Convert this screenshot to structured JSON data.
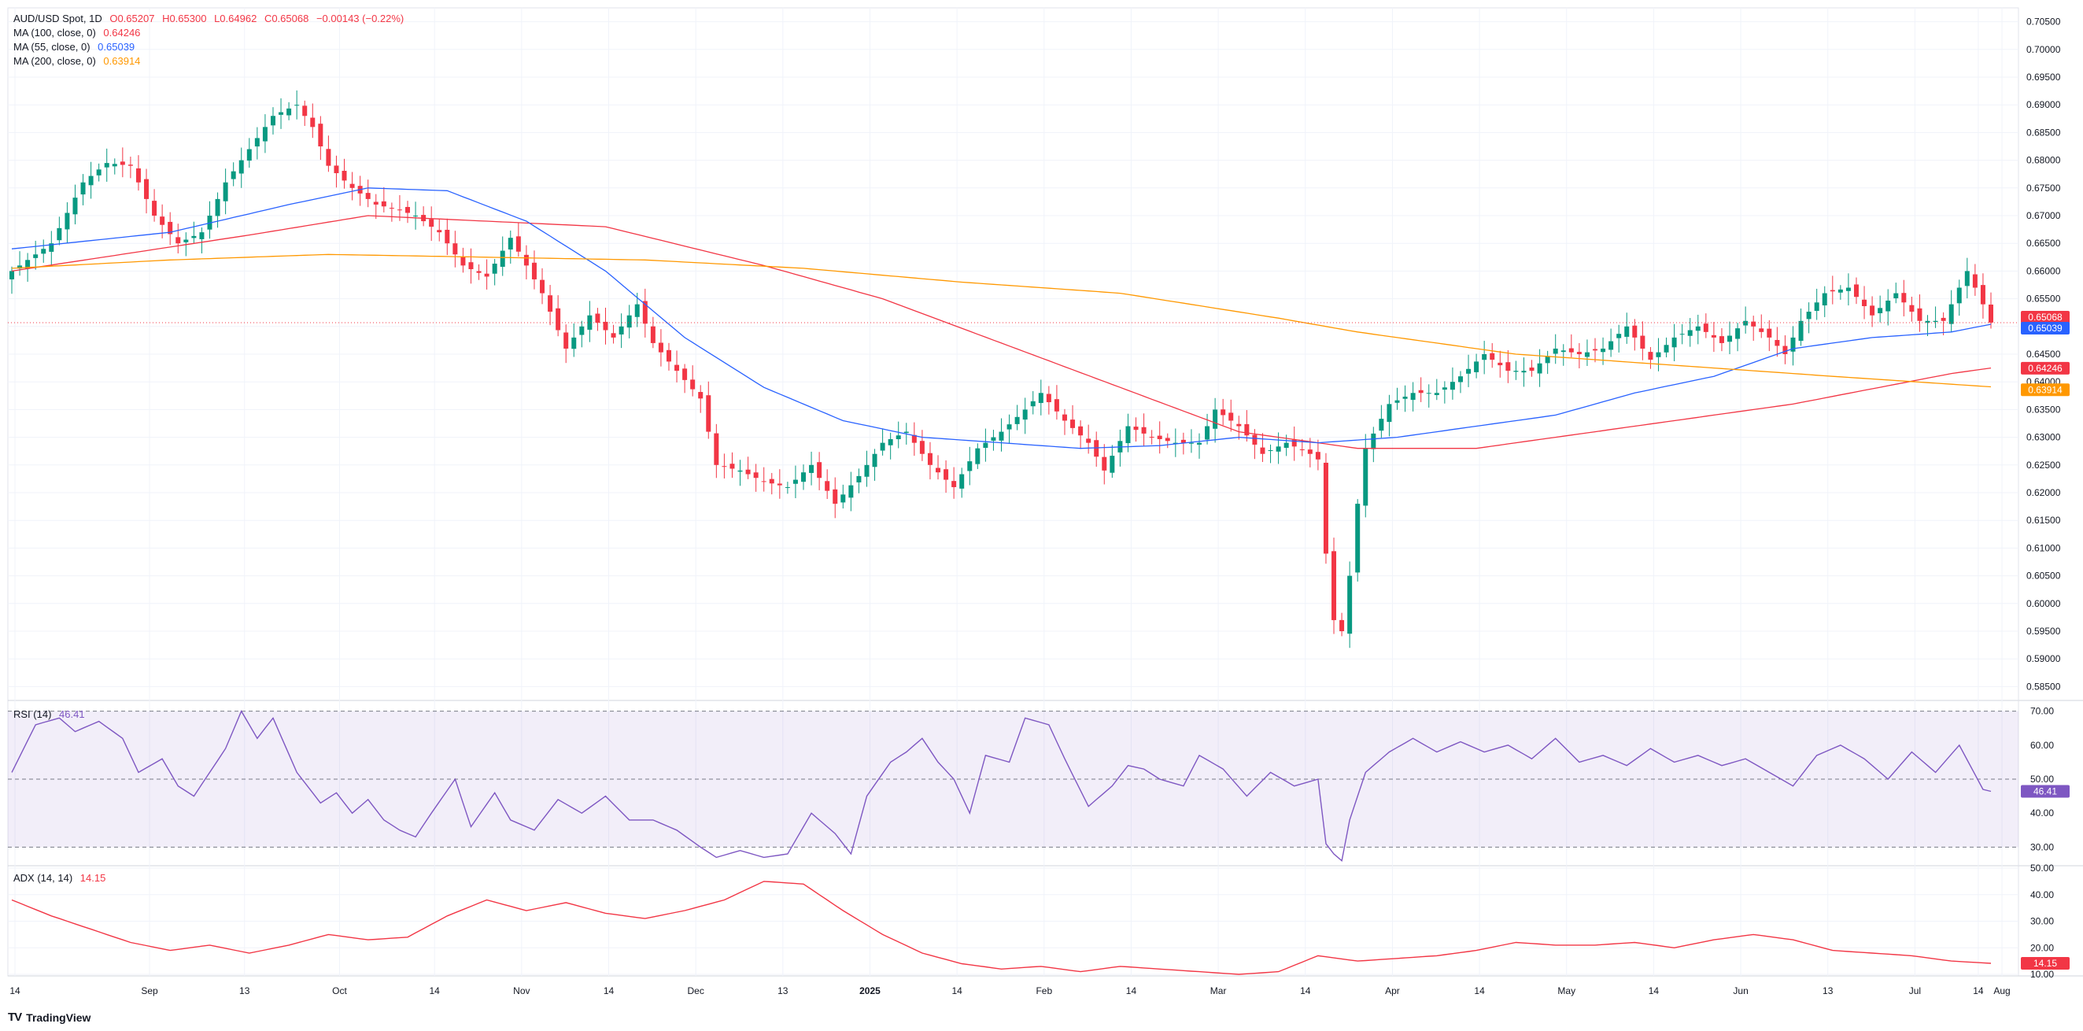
{
  "legend": {
    "symbol": "AUD/USD Spot, 1D",
    "open": "O0.65207",
    "high": "H0.65300",
    "low": "L0.64962",
    "close": "C0.65068",
    "change": "−0.00143 (−0.22%)",
    "ma100_label": "MA (100, close, 0)",
    "ma100_value": "0.64246",
    "ma55_label": "MA (55, close, 0)",
    "ma55_value": "0.65039",
    "ma200_label": "MA (200, close, 0)",
    "ma200_value": "0.63914",
    "rsi_label": "RSI (14)",
    "rsi_value": "46.41",
    "adx_label": "ADX (14, 14)",
    "adx_value": "14.15"
  },
  "brand": "TradingView",
  "colors": {
    "up": "#089981",
    "down": "#f23645",
    "ma100": "#f23645",
    "ma55": "#2962ff",
    "ma200": "#ff9800",
    "rsi": "#7e57c2",
    "adx": "#f23645"
  },
  "chart_data": [
    {
      "type": "candlestick",
      "title": "AUD/USD Spot, 1D",
      "ylim": [
        0.5825,
        0.7075
      ],
      "y_ticks": [
        "0.70500",
        "0.70000",
        "0.69500",
        "0.69000",
        "0.68500",
        "0.68000",
        "0.67500",
        "0.67000",
        "0.66500",
        "0.66000",
        "0.65500",
        "0.65000",
        "0.64500",
        "0.64000",
        "0.63500",
        "0.63000",
        "0.62500",
        "0.62000",
        "0.61500",
        "0.61000",
        "0.60500",
        "0.60000",
        "0.59500",
        "0.59000",
        "0.58500"
      ],
      "x_labels": [
        "14",
        "Sep",
        "13",
        "Oct",
        "14",
        "Nov",
        "14",
        "Dec",
        "13",
        "2025",
        "14",
        "Feb",
        "14",
        "Mar",
        "14",
        "Apr",
        "14",
        "May",
        "14",
        "Jun",
        "13",
        "Jul",
        "14",
        "Aug"
      ],
      "close_anchors": [
        [
          0,
          0.66
        ],
        [
          5,
          0.665
        ],
        [
          9,
          0.676
        ],
        [
          12,
          0.6795
        ],
        [
          15,
          0.679
        ],
        [
          18,
          0.67
        ],
        [
          21,
          0.665
        ],
        [
          24,
          0.667
        ],
        [
          27,
          0.676
        ],
        [
          30,
          0.682
        ],
        [
          33,
          0.688
        ],
        [
          36,
          0.69
        ],
        [
          38,
          0.686
        ],
        [
          40,
          0.679
        ],
        [
          43,
          0.675
        ],
        [
          46,
          0.672
        ],
        [
          49,
          0.671
        ],
        [
          51,
          0.67
        ],
        [
          54,
          0.667
        ],
        [
          57,
          0.661
        ],
        [
          60,
          0.659
        ],
        [
          63,
          0.666
        ],
        [
          65,
          0.661
        ],
        [
          67,
          0.656
        ],
        [
          70,
          0.646
        ],
        [
          73,
          0.652
        ],
        [
          76,
          0.648
        ],
        [
          79,
          0.654
        ],
        [
          81,
          0.647
        ],
        [
          84,
          0.642
        ],
        [
          87,
          0.637
        ],
        [
          89,
          0.625
        ],
        [
          92,
          0.624
        ],
        [
          95,
          0.622
        ],
        [
          98,
          0.621
        ],
        [
          101,
          0.625
        ],
        [
          104,
          0.618
        ],
        [
          107,
          0.623
        ],
        [
          110,
          0.629
        ],
        [
          113,
          0.631
        ],
        [
          116,
          0.625
        ],
        [
          119,
          0.621
        ],
        [
          122,
          0.628
        ],
        [
          125,
          0.631
        ],
        [
          128,
          0.635
        ],
        [
          130,
          0.638
        ],
        [
          133,
          0.633
        ],
        [
          136,
          0.629
        ],
        [
          138,
          0.624
        ],
        [
          141,
          0.632
        ],
        [
          144,
          0.63
        ],
        [
          147,
          0.629
        ],
        [
          150,
          0.629
        ],
        [
          152,
          0.635
        ],
        [
          155,
          0.632
        ],
        [
          158,
          0.627
        ],
        [
          161,
          0.629
        ],
        [
          164,
          0.627
        ],
        [
          165,
          0.626
        ],
        [
          166,
          0.609
        ],
        [
          167,
          0.597
        ],
        [
          168,
          0.595
        ],
        [
          169,
          0.605
        ],
        [
          170,
          0.618
        ],
        [
          171,
          0.628
        ],
        [
          174,
          0.636
        ],
        [
          177,
          0.638
        ],
        [
          180,
          0.638
        ],
        [
          183,
          0.641
        ],
        [
          186,
          0.645
        ],
        [
          189,
          0.642
        ],
        [
          192,
          0.642
        ],
        [
          195,
          0.646
        ],
        [
          198,
          0.645
        ],
        [
          201,
          0.646
        ],
        [
          204,
          0.65
        ],
        [
          207,
          0.644
        ],
        [
          210,
          0.648
        ],
        [
          213,
          0.65
        ],
        [
          216,
          0.647
        ],
        [
          219,
          0.651
        ],
        [
          222,
          0.648
        ],
        [
          224,
          0.645
        ],
        [
          226,
          0.651
        ],
        [
          229,
          0.656
        ],
        [
          232,
          0.657
        ],
        [
          235,
          0.652
        ],
        [
          238,
          0.656
        ],
        [
          241,
          0.651
        ],
        [
          244,
          0.651
        ],
        [
          247,
          0.66
        ],
        [
          249,
          0.654
        ],
        [
          250,
          0.6507
        ]
      ],
      "series": [
        {
          "name": "MA (100, close, 0)",
          "last": 0.64246,
          "anchors": [
            [
              0,
              0.66
            ],
            [
              30,
              0.6665
            ],
            [
              45,
              0.67
            ],
            [
              75,
              0.668
            ],
            [
              95,
              0.661
            ],
            [
              110,
              0.655
            ],
            [
              125,
              0.647
            ],
            [
              140,
              0.639
            ],
            [
              155,
              0.631
            ],
            [
              170,
              0.628
            ],
            [
              185,
              0.628
            ],
            [
              205,
              0.632
            ],
            [
              225,
              0.636
            ],
            [
              245,
              0.6415
            ],
            [
              250,
              0.6425
            ]
          ]
        },
        {
          "name": "MA (55, close, 0)",
          "last": 0.65039,
          "anchors": [
            [
              0,
              0.664
            ],
            [
              20,
              0.667
            ],
            [
              35,
              0.672
            ],
            [
              45,
              0.675
            ],
            [
              55,
              0.6745
            ],
            [
              65,
              0.669
            ],
            [
              75,
              0.66
            ],
            [
              85,
              0.648
            ],
            [
              95,
              0.639
            ],
            [
              105,
              0.633
            ],
            [
              115,
              0.63
            ],
            [
              125,
              0.629
            ],
            [
              135,
              0.628
            ],
            [
              145,
              0.6285
            ],
            [
              155,
              0.63
            ],
            [
              165,
              0.629
            ],
            [
              175,
              0.63
            ],
            [
              185,
              0.632
            ],
            [
              195,
              0.634
            ],
            [
              205,
              0.638
            ],
            [
              215,
              0.641
            ],
            [
              225,
              0.646
            ],
            [
              235,
              0.648
            ],
            [
              245,
              0.649
            ],
            [
              250,
              0.6504
            ]
          ]
        },
        {
          "name": "MA (200, close, 0)",
          "last": 0.63914,
          "anchors": [
            [
              0,
              0.6605
            ],
            [
              20,
              0.662
            ],
            [
              40,
              0.663
            ],
            [
              60,
              0.6625
            ],
            [
              80,
              0.662
            ],
            [
              100,
              0.6605
            ],
            [
              120,
              0.658
            ],
            [
              140,
              0.656
            ],
            [
              160,
              0.6515
            ],
            [
              170,
              0.649
            ],
            [
              190,
              0.645
            ],
            [
              210,
              0.643
            ],
            [
              230,
              0.641
            ],
            [
              250,
              0.6391
            ]
          ]
        }
      ],
      "last_values": [
        "0.65068",
        "0.65039",
        "0.64246",
        "0.63914"
      ]
    },
    {
      "type": "line",
      "title": "RSI (14)",
      "ylim": [
        25,
        72
      ],
      "y_ticks": [
        "70.00",
        "60.00",
        "50.00",
        "40.00",
        "30.00"
      ],
      "band": [
        30,
        70
      ],
      "midline": 50,
      "anchors": [
        [
          0,
          52
        ],
        [
          3,
          66
        ],
        [
          6,
          68
        ],
        [
          8,
          64
        ],
        [
          11,
          67
        ],
        [
          14,
          62
        ],
        [
          16,
          52
        ],
        [
          19,
          56
        ],
        [
          21,
          48
        ],
        [
          23,
          45
        ],
        [
          25,
          52
        ],
        [
          27,
          59
        ],
        [
          29,
          70
        ],
        [
          31,
          62
        ],
        [
          33,
          68
        ],
        [
          36,
          52
        ],
        [
          39,
          43
        ],
        [
          41,
          46
        ],
        [
          43,
          40
        ],
        [
          45,
          44
        ],
        [
          47,
          38
        ],
        [
          49,
          35
        ],
        [
          51,
          33
        ],
        [
          53,
          40
        ],
        [
          56,
          50
        ],
        [
          58,
          36
        ],
        [
          61,
          46
        ],
        [
          63,
          38
        ],
        [
          66,
          35
        ],
        [
          69,
          44
        ],
        [
          72,
          40
        ],
        [
          75,
          45
        ],
        [
          78,
          38
        ],
        [
          81,
          38
        ],
        [
          84,
          35
        ],
        [
          87,
          30
        ],
        [
          89,
          27
        ],
        [
          92,
          29
        ],
        [
          95,
          27
        ],
        [
          98,
          28
        ],
        [
          101,
          40
        ],
        [
          104,
          34
        ],
        [
          106,
          28
        ],
        [
          108,
          45
        ],
        [
          111,
          55
        ],
        [
          113,
          58
        ],
        [
          115,
          62
        ],
        [
          117,
          55
        ],
        [
          119,
          50
        ],
        [
          121,
          40
        ],
        [
          123,
          57
        ],
        [
          126,
          55
        ],
        [
          128,
          68
        ],
        [
          131,
          66
        ],
        [
          133,
          56
        ],
        [
          136,
          42
        ],
        [
          139,
          48
        ],
        [
          141,
          54
        ],
        [
          143,
          53
        ],
        [
          145,
          50
        ],
        [
          148,
          48
        ],
        [
          150,
          57
        ],
        [
          153,
          53
        ],
        [
          156,
          45
        ],
        [
          159,
          52
        ],
        [
          162,
          48
        ],
        [
          165,
          50
        ],
        [
          166,
          31
        ],
        [
          167,
          28
        ],
        [
          168,
          26
        ],
        [
          169,
          38
        ],
        [
          171,
          52
        ],
        [
          174,
          58
        ],
        [
          177,
          62
        ],
        [
          180,
          58
        ],
        [
          183,
          61
        ],
        [
          186,
          58
        ],
        [
          189,
          60
        ],
        [
          192,
          56
        ],
        [
          195,
          62
        ],
        [
          198,
          55
        ],
        [
          201,
          57
        ],
        [
          204,
          54
        ],
        [
          207,
          59
        ],
        [
          210,
          55
        ],
        [
          213,
          57
        ],
        [
          216,
          54
        ],
        [
          219,
          56
        ],
        [
          222,
          52
        ],
        [
          225,
          48
        ],
        [
          228,
          57
        ],
        [
          231,
          60
        ],
        [
          234,
          56
        ],
        [
          237,
          50
        ],
        [
          240,
          58
        ],
        [
          243,
          52
        ],
        [
          246,
          60
        ],
        [
          249,
          47
        ],
        [
          250,
          46.41
        ]
      ]
    },
    {
      "type": "line",
      "title": "ADX (14, 14)",
      "ylim": [
        10,
        50
      ],
      "y_ticks": [
        "50.00",
        "40.00",
        "30.00",
        "20.00",
        "10.00"
      ],
      "anchors": [
        [
          0,
          38
        ],
        [
          5,
          32
        ],
        [
          10,
          27
        ],
        [
          15,
          22
        ],
        [
          20,
          19
        ],
        [
          25,
          21
        ],
        [
          30,
          18
        ],
        [
          35,
          21
        ],
        [
          40,
          25
        ],
        [
          45,
          23
        ],
        [
          50,
          24
        ],
        [
          55,
          32
        ],
        [
          60,
          38
        ],
        [
          65,
          34
        ],
        [
          70,
          37
        ],
        [
          75,
          33
        ],
        [
          80,
          31
        ],
        [
          85,
          34
        ],
        [
          90,
          38
        ],
        [
          95,
          45
        ],
        [
          100,
          44
        ],
        [
          105,
          34
        ],
        [
          110,
          25
        ],
        [
          115,
          18
        ],
        [
          120,
          14
        ],
        [
          125,
          12
        ],
        [
          130,
          13
        ],
        [
          135,
          11
        ],
        [
          140,
          13
        ],
        [
          145,
          12
        ],
        [
          150,
          11
        ],
        [
          155,
          10
        ],
        [
          160,
          11
        ],
        [
          165,
          17
        ],
        [
          170,
          15
        ],
        [
          175,
          16
        ],
        [
          180,
          17
        ],
        [
          185,
          19
        ],
        [
          190,
          22
        ],
        [
          195,
          21
        ],
        [
          200,
          21
        ],
        [
          205,
          22
        ],
        [
          210,
          20
        ],
        [
          215,
          23
        ],
        [
          220,
          25
        ],
        [
          225,
          23
        ],
        [
          230,
          19
        ],
        [
          235,
          18
        ],
        [
          240,
          17
        ],
        [
          245,
          15
        ],
        [
          250,
          14.15
        ]
      ]
    }
  ]
}
